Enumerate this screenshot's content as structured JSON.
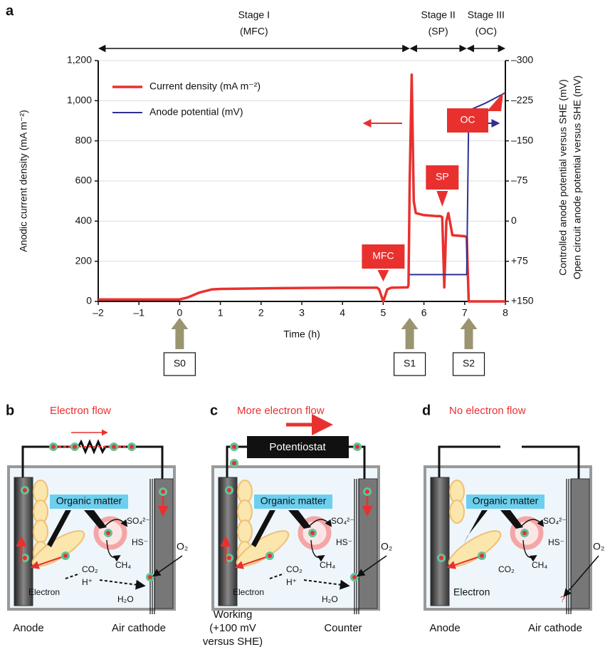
{
  "chart_data": {
    "type": "line",
    "panel_label": "a",
    "xlabel": "Time (h)",
    "ylabel": "Anodic current density (mA m⁻²)",
    "y2label": [
      "Controlled anode potential versus SHE (mV)",
      "Open circuit anode potential versus SHE (mV)"
    ],
    "xlim": [
      -2,
      8
    ],
    "xticks": [
      {
        "value": -2,
        "label": "–2"
      },
      {
        "value": -1,
        "label": "–1"
      },
      0,
      1,
      2,
      3,
      4,
      5,
      6,
      7,
      8
    ],
    "ylim": [
      0,
      1200
    ],
    "yticks": [
      0,
      200,
      400,
      600,
      800,
      {
        "value": 1000,
        "label": "1,000"
      },
      {
        "value": 1200,
        "label": "1,200"
      }
    ],
    "y2lim": [
      150,
      -300
    ],
    "y2ticks": [
      {
        "value": 150,
        "label": "+150"
      },
      {
        "value": 75,
        "label": "+75"
      },
      0,
      {
        "value": -75,
        "label": "–75"
      },
      {
        "value": -150,
        "label": "–150"
      },
      {
        "value": -225,
        "label": "–225"
      },
      {
        "value": -300,
        "label": "–300"
      }
    ],
    "grid": true,
    "series": [
      {
        "name": "Current density (mA m⁻²)",
        "color": "#e8312f",
        "x": [
          -2,
          -1,
          0,
          0.2,
          0.5,
          0.8,
          1,
          2,
          3,
          4,
          4.85,
          4.9,
          5,
          5.1,
          5.2,
          5.6,
          5.62,
          5.65,
          5.7,
          5.75,
          5.8,
          6,
          6.3,
          6.4,
          6.45,
          6.5,
          6.55,
          6.6,
          6.7,
          7,
          7.05,
          7.1,
          7.2,
          8
        ],
        "values": [
          10,
          10,
          10,
          20,
          45,
          60,
          62,
          65,
          67,
          68,
          68,
          60,
          0,
          60,
          68,
          70,
          80,
          600,
          1130,
          500,
          440,
          430,
          425,
          425,
          420,
          70,
          400,
          440,
          330,
          325,
          320,
          0,
          0,
          0
        ]
      },
      {
        "name": "Anode potential (mV)",
        "color": "#2e3192",
        "axis": "y2",
        "x": [
          5.65,
          7.05,
          7.1,
          7.2,
          7.5,
          8
        ],
        "values": [
          100,
          100,
          -202,
          -210,
          -220,
          -240
        ]
      }
    ],
    "stages": [
      {
        "name": "Stage I",
        "mode": "(MFC)",
        "from": -2,
        "to": 5.65
      },
      {
        "name": "Stage II",
        "mode": "(SP)",
        "from": 5.65,
        "to": 7.05
      },
      {
        "name": "Stage III",
        "mode": "(OC)",
        "from": 7.05,
        "to": 8
      }
    ],
    "annotations": [
      {
        "text": "MFC",
        "x": 5
      },
      {
        "text": "SP",
        "x": 6.45
      },
      {
        "text": "OC",
        "x": 8
      }
    ],
    "switches": [
      {
        "text": "S0",
        "x": 0
      },
      {
        "text": "S1",
        "x": 5.65
      },
      {
        "text": "S2",
        "x": 7.1
      }
    ]
  },
  "diagrams": [
    {
      "label": "b",
      "title": "Electron flow",
      "matter": "Organic matter",
      "sulfate": "SO₄²⁻",
      "sulfide": "HS⁻",
      "methane": "CH₄",
      "co2": "CO₂",
      "proton": "H⁺",
      "electron": "Electron",
      "water": "H₂O",
      "oxygen": "O₂",
      "anode": [
        "Anode"
      ],
      "cathode": "Air cathode"
    },
    {
      "label": "c",
      "title": "More electron flow",
      "device": "Potentiostat",
      "matter": "Organic matter",
      "sulfate": "SO₄²⁻",
      "sulfide": "HS⁻",
      "methane": "CH₄",
      "co2": "CO₂",
      "proton": "H⁺",
      "electron": "Electron",
      "water": "H₂O",
      "oxygen": "O₂",
      "anode": [
        "Working",
        "(+100 mV",
        "versus SHE)"
      ],
      "cathode": "Counter"
    },
    {
      "label": "d",
      "title": "No electron flow",
      "matter": "Organic matter",
      "sulfate": "SO₄²⁻",
      "sulfide": "HS⁻",
      "methane": "CH₄",
      "co2": "CO₂",
      "electron": "Electron",
      "oxygen": "O₂",
      "unknown": "?",
      "anode": [
        "Anode"
      ],
      "cathode": "Air cathode"
    }
  ]
}
